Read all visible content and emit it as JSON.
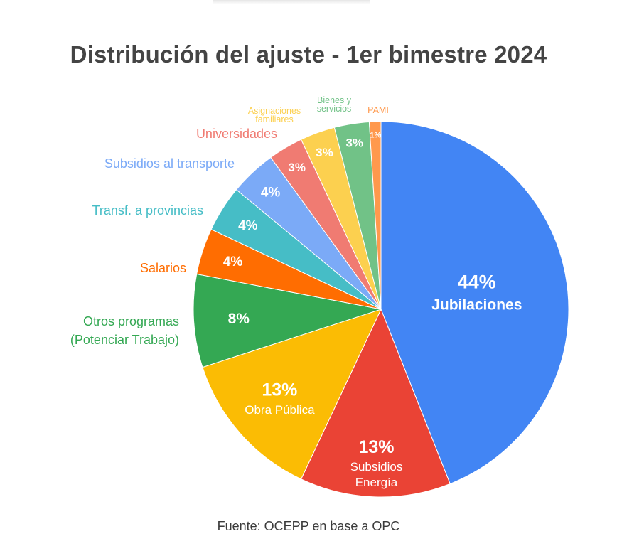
{
  "chart_title": "Distribución del ajuste - 1er bimestre 2024",
  "source_note": "Fuente: OCEPP en base a OPC",
  "chart_data": {
    "type": "pie",
    "title": "Distribución del ajuste - 1er bimestre 2024",
    "slices": [
      {
        "label": "Jubilaciones",
        "value": 44,
        "display": "44%",
        "color": "#4285f4"
      },
      {
        "label": "Subsidios Energía",
        "value": 13,
        "display": "13%",
        "color": "#ea4335"
      },
      {
        "label": "Obra Pública",
        "value": 13,
        "display": "13%",
        "color": "#fbbc04"
      },
      {
        "label": "Otros programas (Potenciar Trabajo)",
        "value": 8,
        "display": "8%",
        "color": "#34a853"
      },
      {
        "label": "Salarios",
        "value": 4,
        "display": "4%",
        "color": "#ff6d01"
      },
      {
        "label": "Transf. a provincias",
        "value": 4,
        "display": "4%",
        "color": "#46bdc6"
      },
      {
        "label": "Subsidios al transporte",
        "value": 4,
        "display": "4%",
        "color": "#7baaf7"
      },
      {
        "label": "Universidades",
        "value": 3,
        "display": "3%",
        "color": "#f07b72"
      },
      {
        "label": "Asignaciones familiares",
        "value": 3,
        "display": "3%",
        "color": "#fcd04f"
      },
      {
        "label": "Bienes y servicios",
        "value": 3,
        "display": "3%",
        "color": "#71c287"
      },
      {
        "label": "PAMI",
        "value": 1,
        "display": "1%",
        "color": "#ff994d"
      }
    ]
  }
}
